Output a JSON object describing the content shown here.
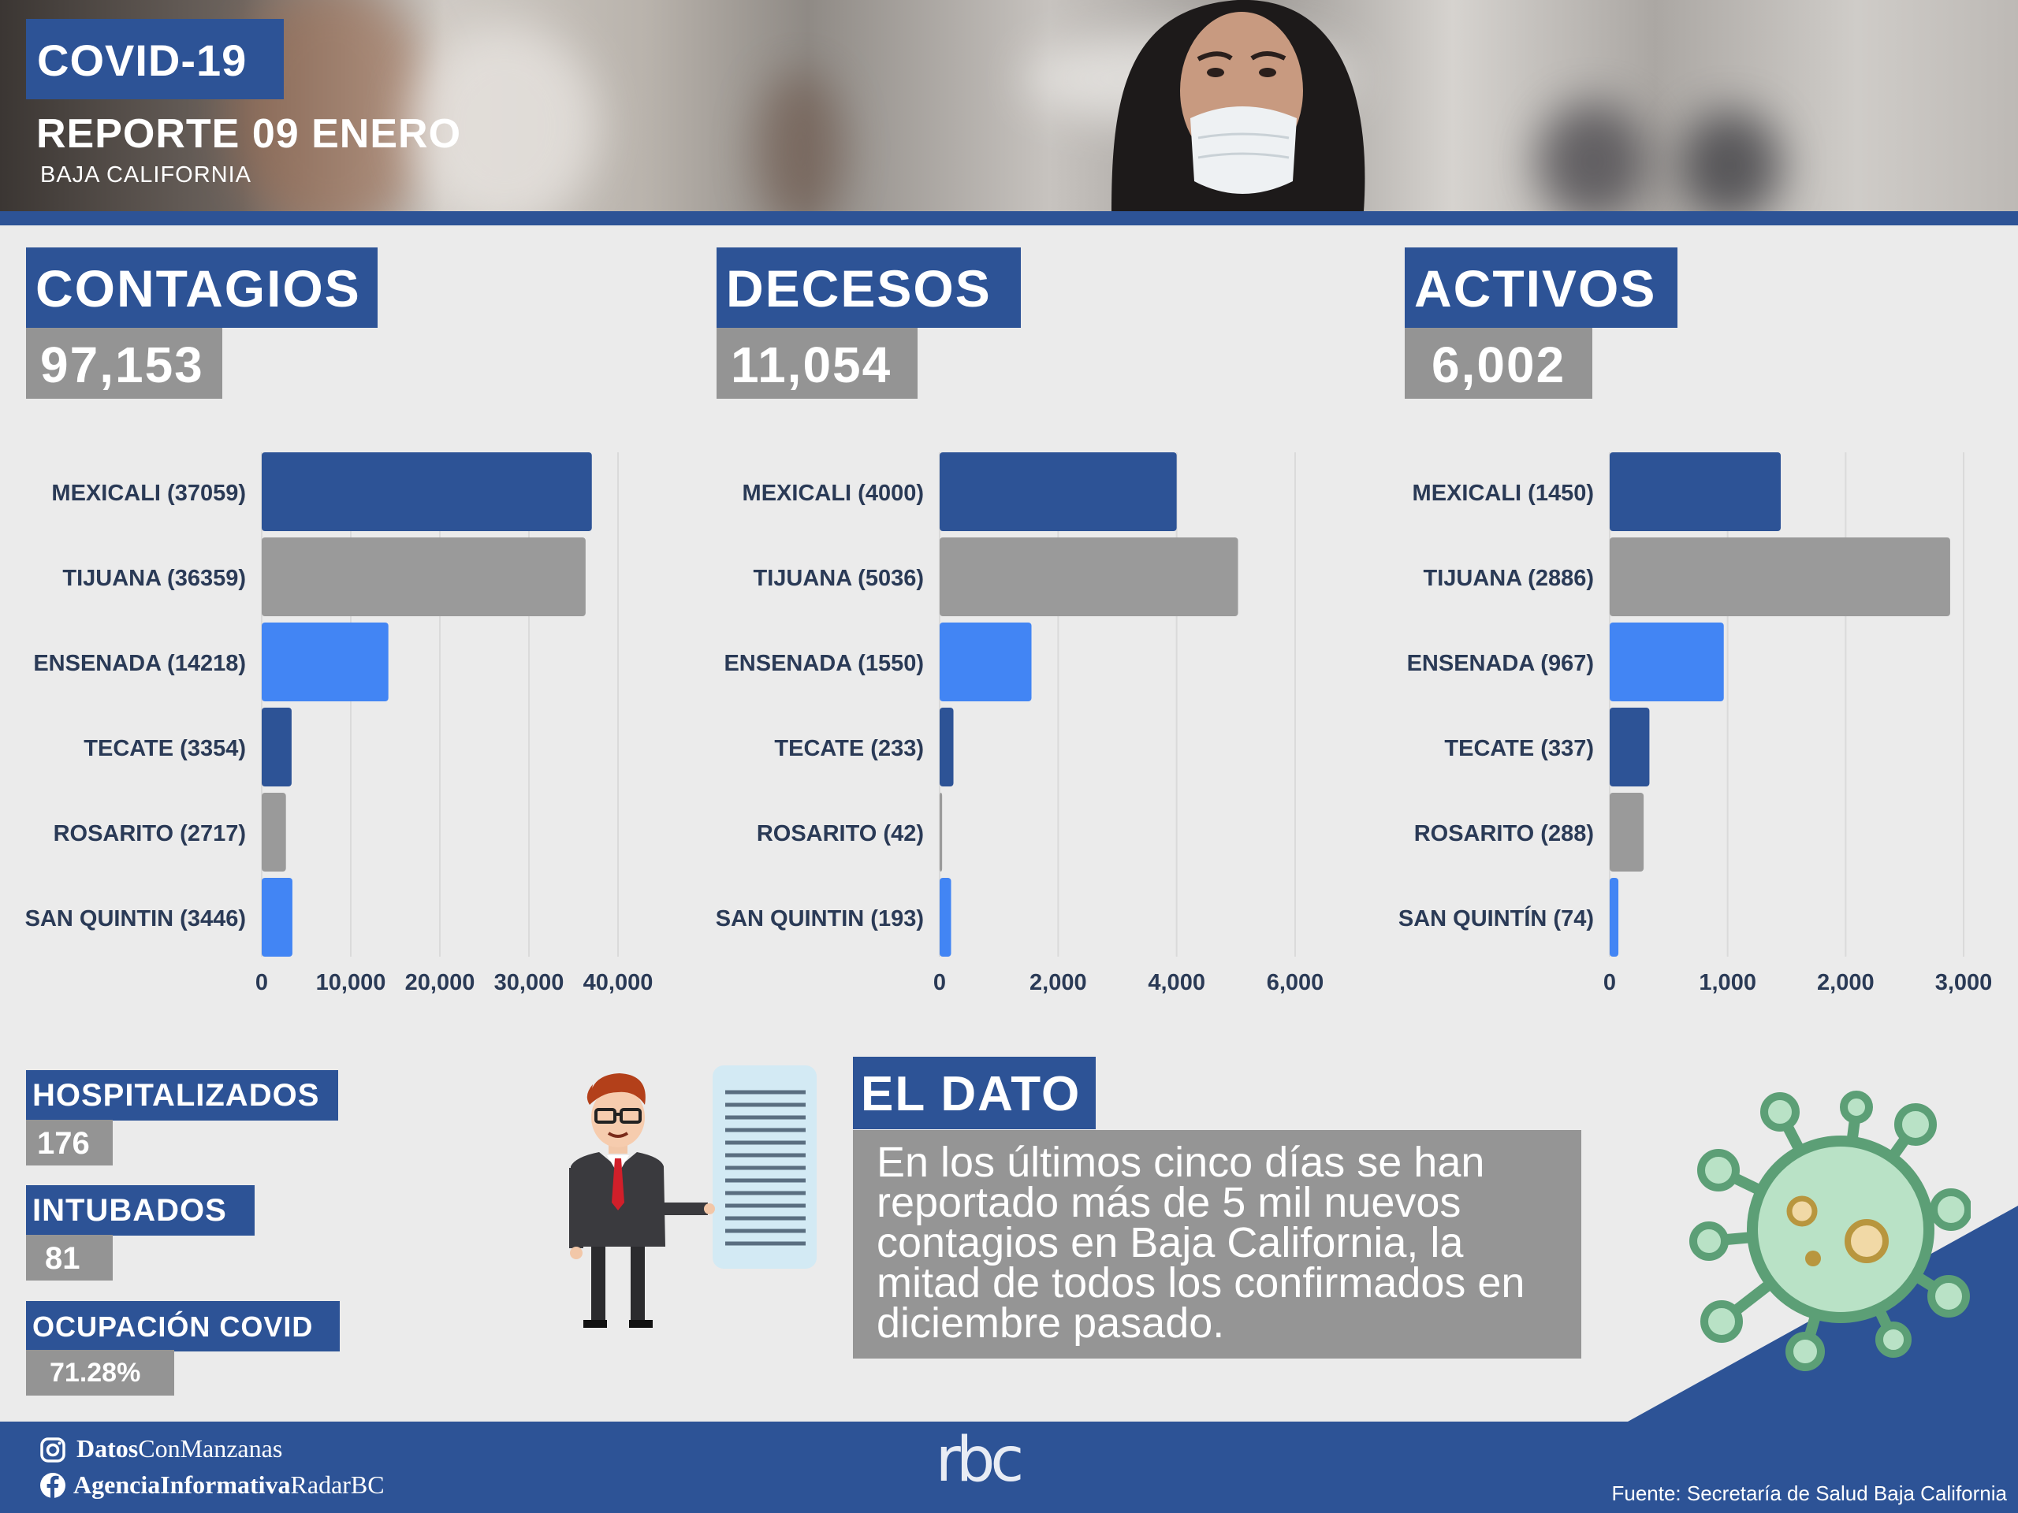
{
  "header": {
    "tag": "COVID-19",
    "title": "REPORTE 09 ENERO",
    "subtitle": "BAJA CALIFORNIA"
  },
  "kpis": [
    {
      "label": "CONTAGIOS",
      "value": "97,153"
    },
    {
      "label": "DECESOS",
      "value": "11,054"
    },
    {
      "label": "ACTIVOS",
      "value": "6,002"
    }
  ],
  "colors": {
    "navy": "#2d5396",
    "gray": "#9a9a9a",
    "blue": "#4285f4",
    "background": "#ebebeb"
  },
  "chart_data": [
    {
      "type": "bar",
      "orientation": "horizontal",
      "categories": [
        "MEXICALI (37059)",
        "TIJUANA (36359)",
        "ENSENADA (14218)",
        "TECATE (3354)",
        "ROSARITO (2717)",
        "SAN QUINTIN (3446)"
      ],
      "values": [
        37059,
        36359,
        14218,
        3354,
        2717,
        3446
      ],
      "bar_colors": [
        "navy",
        "gray",
        "blue",
        "navy",
        "gray",
        "blue"
      ],
      "xlim": [
        0,
        40000
      ],
      "ticks": [
        "0",
        "10,000",
        "20,000",
        "30,000",
        "40,000"
      ],
      "tick_values": [
        0,
        10000,
        20000,
        30000,
        40000
      ],
      "grid": true
    },
    {
      "type": "bar",
      "orientation": "horizontal",
      "categories": [
        "MEXICALI (4000)",
        "TIJUANA (5036)",
        "ENSENADA (1550)",
        "TECATE (233)",
        "ROSARITO (42)",
        "SAN QUINTIN (193)"
      ],
      "values": [
        4000,
        5036,
        1550,
        233,
        42,
        193
      ],
      "bar_colors": [
        "navy",
        "gray",
        "blue",
        "navy",
        "gray",
        "blue"
      ],
      "xlim": [
        0,
        6000
      ],
      "ticks": [
        "0",
        "2,000",
        "4,000",
        "6,000"
      ],
      "tick_values": [
        0,
        2000,
        4000,
        6000
      ],
      "grid": true
    },
    {
      "type": "bar",
      "orientation": "horizontal",
      "categories": [
        "MEXICALI (1450)",
        "TIJUANA (2886)",
        "ENSENADA (967)",
        "TECATE (337)",
        "ROSARITO (288)",
        "SAN QUINTÍN (74)"
      ],
      "values": [
        1450,
        2886,
        967,
        337,
        288,
        74
      ],
      "bar_colors": [
        "navy",
        "gray",
        "blue",
        "navy",
        "gray",
        "blue"
      ],
      "xlim": [
        0,
        3000
      ],
      "ticks": [
        "0",
        "1,000",
        "2,000",
        "3,000"
      ],
      "tick_values": [
        0,
        1000,
        2000,
        3000
      ],
      "grid": true
    }
  ],
  "stats": [
    {
      "label": "HOSPITALIZADOS",
      "value": "176"
    },
    {
      "label": "INTUBADOS",
      "value": "81"
    },
    {
      "label": "OCUPACIÓN COVID",
      "value": "71.28%"
    }
  ],
  "dato": {
    "title": "EL DATO",
    "text": "En los últimos cinco días se han reportado más de 5 mil nuevos contagios en Baja California, la mitad de todos los confirmados en diciembre pasado."
  },
  "footer": {
    "instagram_bold": "Datos",
    "instagram_rest": "ConManzanas",
    "facebook_bold": "AgenciaInformativa",
    "facebook_rest": "RadarBC",
    "logo": "rbc",
    "source": "Fuente: Secretaría de Salud Baja California"
  }
}
